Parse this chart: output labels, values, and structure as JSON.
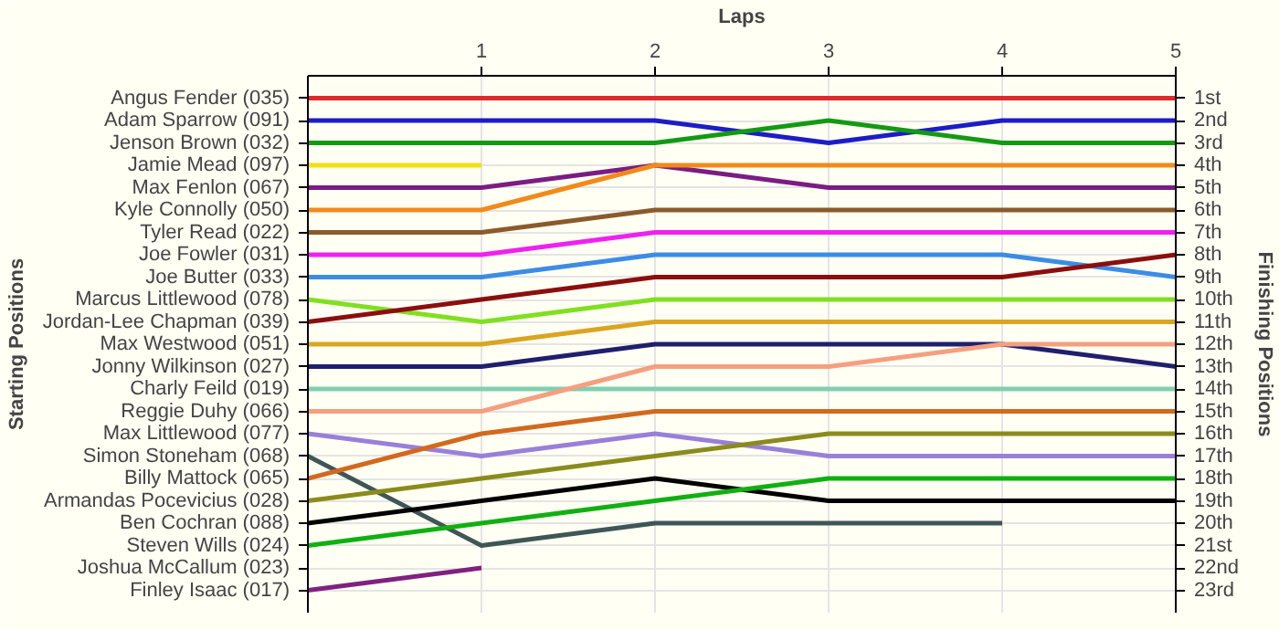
{
  "chart_data": {
    "type": "line",
    "xlabel": "Laps",
    "ylabel": "Finishing Positions",
    "x": [
      0,
      1,
      2,
      3,
      4,
      5
    ],
    "xlim": [
      0,
      5
    ],
    "xticks": [
      1,
      2,
      3,
      4,
      5
    ],
    "ylim": [
      24,
      0
    ],
    "yticks": [
      {
        "value": 1,
        "label": "1st"
      },
      {
        "value": 2,
        "label": "2nd"
      },
      {
        "value": 3,
        "label": "3rd"
      },
      {
        "value": 4,
        "label": "4th"
      },
      {
        "value": 5,
        "label": "5th"
      },
      {
        "value": 6,
        "label": "6th"
      },
      {
        "value": 7,
        "label": "7th"
      },
      {
        "value": 8,
        "label": "8th"
      },
      {
        "value": 9,
        "label": "9th"
      },
      {
        "value": 10,
        "label": "10th"
      },
      {
        "value": 11,
        "label": "11th"
      },
      {
        "value": 12,
        "label": "12th"
      },
      {
        "value": 13,
        "label": "13th"
      },
      {
        "value": 14,
        "label": "14th"
      },
      {
        "value": 15,
        "label": "15th"
      },
      {
        "value": 16,
        "label": "16th"
      },
      {
        "value": 17,
        "label": "17th"
      },
      {
        "value": 18,
        "label": "18th"
      },
      {
        "value": 19,
        "label": "19th"
      },
      {
        "value": 20,
        "label": "20th"
      },
      {
        "value": 21,
        "label": "21st"
      },
      {
        "value": 22,
        "label": "22nd"
      },
      {
        "value": 23,
        "label": "23rd"
      }
    ],
    "annotations": [
      "Starting Positions",
      "Angus Fender (035)",
      "Adam Sparrow (091)",
      "Jenson Brown (032)",
      "Jamie Mead (097)",
      "Max Fenlon (067)",
      "Kyle Connolly (050)",
      "Tyler Read (022)",
      "Joe Fowler (031)",
      "Joe Butter (033)",
      "Marcus Littlewood (078)",
      "Jordan-Lee Chapman (039)",
      "Max Westwood (051)",
      "Jonny Wilkinson (027)",
      "Charly Feild (019)",
      "Reggie Duhy (066)",
      "Max Littlewood (077)",
      "Simon Stoneham (068)",
      "Billy Mattock (065)",
      "Armandas Pocevicius (028)",
      "Ben Cochran (088)",
      "Steven Wills (024)",
      "Joshua McCallum (023)",
      "Finley Isaac (017)"
    ],
    "grid": true,
    "marker": "none",
    "line_style": "solid",
    "series": [
      {
        "color": "#e02a2a",
        "values": [
          1,
          1,
          1,
          1,
          1,
          1
        ]
      },
      {
        "color": "#1c1cc8",
        "values": [
          2,
          2,
          2,
          3,
          2,
          2
        ]
      },
      {
        "color": "#139a13",
        "values": [
          3,
          3,
          3,
          2,
          3,
          3
        ]
      },
      {
        "color": "#f2e010",
        "values": [
          4,
          4,
          null,
          null,
          null,
          null
        ]
      },
      {
        "color": "#7b1c83",
        "values": [
          5,
          5,
          4,
          5,
          5,
          5
        ]
      },
      {
        "color": "#f28a1a",
        "values": [
          6,
          6,
          4,
          4,
          4,
          4
        ]
      },
      {
        "color": "#8b5a2b",
        "values": [
          7,
          7,
          6,
          6,
          6,
          6
        ]
      },
      {
        "color": "#f020f0",
        "values": [
          8,
          8,
          7,
          7,
          7,
          7
        ]
      },
      {
        "color": "#3c8ce6",
        "values": [
          9,
          9,
          8,
          8,
          8,
          9
        ]
      },
      {
        "color": "#80e020",
        "values": [
          10,
          11,
          10,
          10,
          10,
          10
        ]
      },
      {
        "color": "#8b0e0e",
        "values": [
          11,
          10,
          9,
          9,
          9,
          8
        ]
      },
      {
        "color": "#daa520",
        "values": [
          12,
          12,
          11,
          11,
          11,
          11
        ]
      },
      {
        "color": "#1f1f6e",
        "values": [
          13,
          13,
          12,
          12,
          12,
          13
        ]
      },
      {
        "color": "#7fcfb0",
        "values": [
          14,
          14,
          14,
          14,
          14,
          14
        ]
      },
      {
        "color": "#f4a080",
        "values": [
          15,
          15,
          13,
          13,
          12,
          12
        ]
      },
      {
        "color": "#9a7fd8",
        "values": [
          16,
          17,
          16,
          17,
          17,
          17
        ]
      },
      {
        "color": "#3f5656",
        "values": [
          17,
          21,
          20,
          20,
          20,
          null
        ]
      },
      {
        "color": "#d2691e",
        "values": [
          18,
          16,
          15,
          15,
          15,
          15
        ]
      },
      {
        "color": "#8b8b1c",
        "values": [
          19,
          18,
          17,
          16,
          16,
          16
        ]
      },
      {
        "color": "#000000",
        "values": [
          20,
          19,
          18,
          19,
          19,
          19
        ]
      },
      {
        "color": "#10b010",
        "values": [
          21,
          20,
          19,
          18,
          18,
          18
        ]
      },
      {
        "color": "#802080",
        "values": [
          23,
          22,
          null,
          null,
          null,
          null
        ]
      }
    ]
  }
}
